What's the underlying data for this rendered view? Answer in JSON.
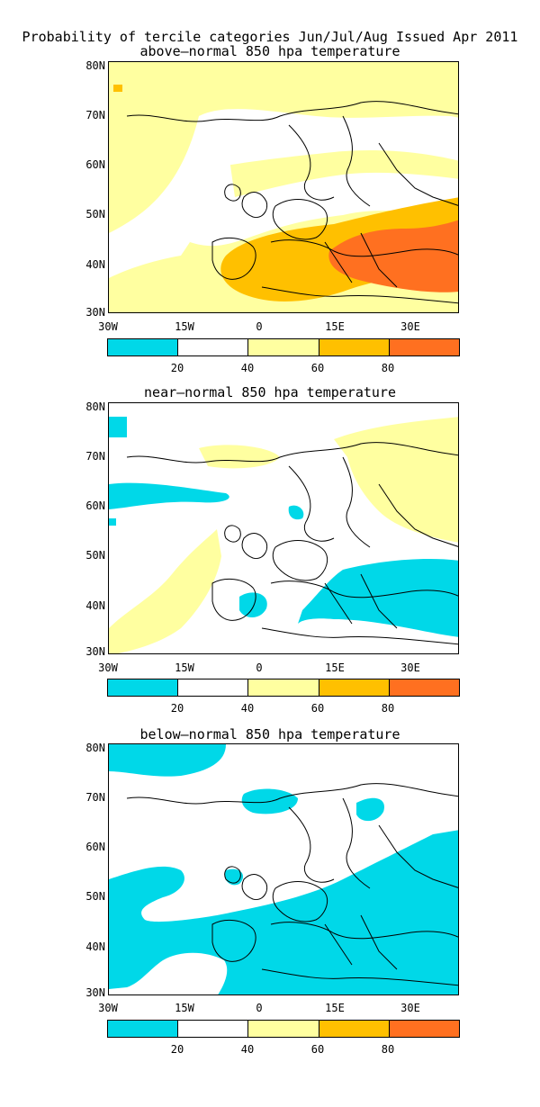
{
  "header": {
    "title": "Probability of tercile categories Jun/Jul/Aug Issued Apr 2011"
  },
  "panels": [
    {
      "subtitle": "above–normal 850 hpa temperature",
      "category": "above"
    },
    {
      "subtitle": "near–normal 850 hpa temperature",
      "category": "near"
    },
    {
      "subtitle": "below–normal 850 hpa temperature",
      "category": "below"
    }
  ],
  "axes": {
    "lat_labels": [
      "80N",
      "70N",
      "60N",
      "50N",
      "40N",
      "30N"
    ],
    "lon_labels": [
      "30W",
      "15W",
      "0",
      "15E",
      "30E"
    ]
  },
  "colorbar": {
    "labels": [
      "20",
      "40",
      "60",
      "80"
    ],
    "colors": [
      "#00d8e8",
      "#ffffff",
      "#ffffa0",
      "#ffc000",
      "#ff7020"
    ]
  },
  "colors": {
    "cyan": "#00d8e8",
    "light_yellow": "#ffffa0",
    "orange": "#ffc000",
    "dark_orange": "#ff7020"
  }
}
